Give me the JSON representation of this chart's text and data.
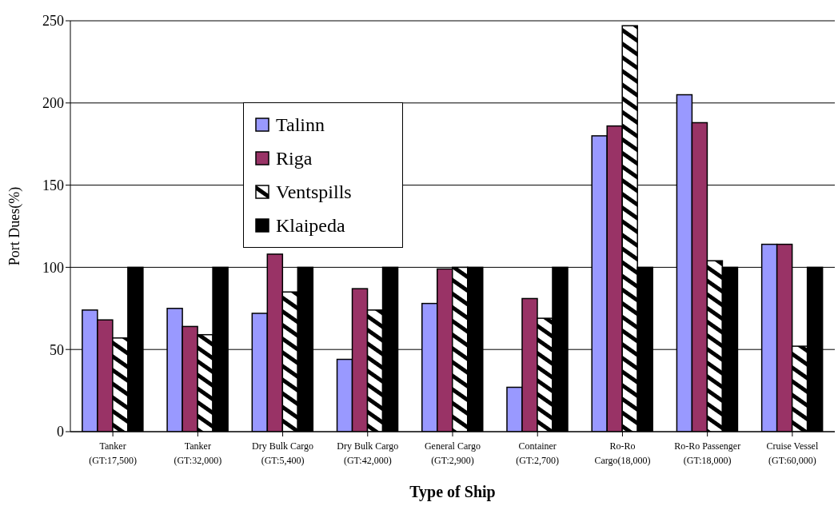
{
  "chart_data": {
    "type": "bar",
    "xlabel": "Type of Ship",
    "ylabel": "Port Dues(%)",
    "categories": [
      "Tanker\n(GT:17,500)",
      "Tanker\n(GT:32,000)",
      "Dry Bulk Cargo\n(GT:5,400)",
      "Dry Bulk Cargo\n(GT:42,000)",
      "General Cargo\n(GT:2,900)",
      "Container\n(GT:2,700)",
      "Ro-Ro\nCargo(18,000)",
      "Ro-Ro Passenger\n(GT:18,000)",
      "Cruise Vessel\n(GT:60,000)"
    ],
    "series": [
      {
        "name": "Talinn",
        "color": "#9999ff",
        "values": [
          74,
          75,
          72,
          44,
          78,
          27,
          180,
          205,
          114
        ]
      },
      {
        "name": "Riga",
        "color": "#993366",
        "values": [
          68,
          64,
          108,
          87,
          99,
          81,
          186,
          188,
          114
        ]
      },
      {
        "name": "Ventspills",
        "color": "#ffffff",
        "values": [
          57,
          59,
          85,
          74,
          100,
          69,
          247,
          104,
          52
        ]
      },
      {
        "name": "Klaipeda",
        "color": "#000000",
        "values": [
          100,
          100,
          100,
          100,
          100,
          100,
          100,
          100,
          100
        ]
      }
    ],
    "ylim": [
      0,
      250
    ],
    "yticks": [
      0,
      50,
      100,
      150,
      200,
      250
    ],
    "grid": "y",
    "legend": "top left"
  }
}
